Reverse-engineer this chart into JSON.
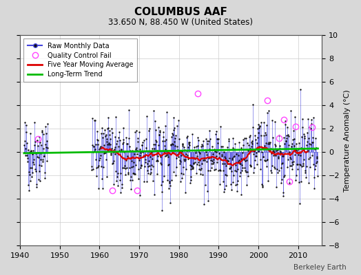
{
  "title": "COLUMBUS AAF",
  "subtitle": "33.650 N, 88.450 W (United States)",
  "ylabel": "Temperature Anomaly (°C)",
  "watermark": "Berkeley Earth",
  "xlim": [
    1940,
    2016
  ],
  "ylim": [
    -8,
    10
  ],
  "yticks": [
    -8,
    -6,
    -4,
    -2,
    0,
    2,
    4,
    6,
    8,
    10
  ],
  "xticks": [
    1940,
    1950,
    1960,
    1970,
    1980,
    1990,
    2000,
    2010
  ],
  "bg_color": "#d8d8d8",
  "plot_bg_color": "#ffffff",
  "line_color": "#4444dd",
  "dot_color": "#111111",
  "ma_color": "#dd0000",
  "trend_color": "#00bb00",
  "qc_color": "#ff44ff",
  "seed": 42
}
